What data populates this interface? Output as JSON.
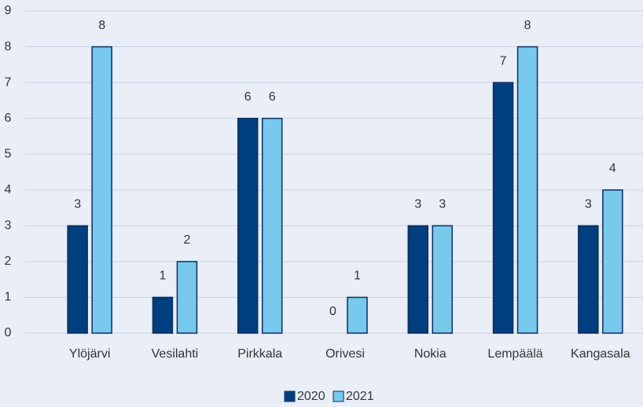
{
  "chart_data": {
    "type": "bar",
    "categories": [
      "Ylöjärvi",
      "Vesilahti",
      "Pirkkala",
      "Orivesi",
      "Nokia",
      "Lempäälä",
      "Kangasala"
    ],
    "series": [
      {
        "name": "2020",
        "color": "#003f7f",
        "values": [
          3,
          1,
          6,
          0,
          3,
          7,
          3
        ]
      },
      {
        "name": "2021",
        "color": "#78c9ee",
        "values": [
          8,
          2,
          6,
          1,
          3,
          8,
          4
        ]
      }
    ],
    "ylim": [
      0,
      9
    ],
    "yticks": [
      0,
      1,
      2,
      3,
      4,
      5,
      6,
      7,
      8,
      9
    ],
    "grid": true,
    "legend": "bottom"
  }
}
